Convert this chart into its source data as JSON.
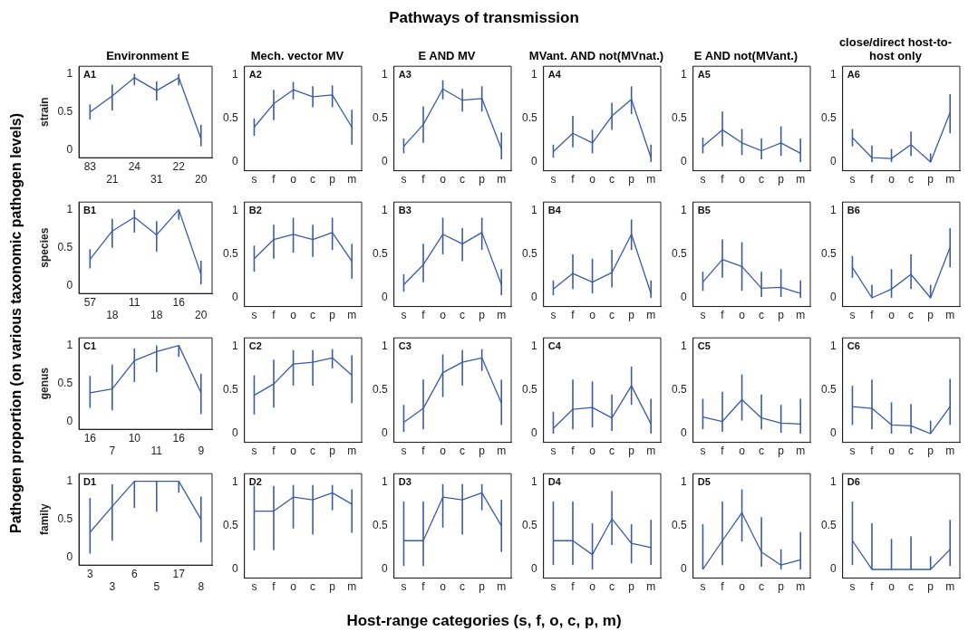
{
  "chart_data": [
    {
      "type": "other",
      "title": "Pathways of transmission",
      "xlabel": "Host-range categories (s, f, o, c, p, m)",
      "ylabel": "Pathogen proportion (on various taxonomic pathogen levels)"
    },
    {
      "type": "line",
      "title": "Environment E",
      "ylabel": "strain",
      "annotations": [
        "A1"
      ],
      "categories": [
        "83",
        "21",
        "24",
        "31",
        "22",
        "20"
      ],
      "values": [
        0.5,
        0.71,
        0.95,
        0.78,
        0.95,
        0.15
      ],
      "errors": [
        [
          0.4,
          0.6
        ],
        [
          0.52,
          0.86
        ],
        [
          0.85,
          1.0
        ],
        [
          0.65,
          0.9
        ],
        [
          0.85,
          1.0
        ],
        [
          0.05,
          0.33
        ]
      ],
      "color": "#3b5ba5",
      "ylim": [
        -0.1,
        1.1
      ],
      "yticks": [
        0,
        0.5,
        1
      ],
      "grid": false,
      "legend": false
    },
    {
      "type": "line",
      "title": "Mech. vector MV",
      "annotations": [
        "A2"
      ],
      "categories": [
        "s",
        "f",
        "o",
        "c",
        "p",
        "m"
      ],
      "values": [
        0.4,
        0.67,
        0.83,
        0.75,
        0.77,
        0.4
      ],
      "errors": [
        [
          0.3,
          0.5
        ],
        [
          0.48,
          0.83
        ],
        [
          0.72,
          0.92
        ],
        [
          0.63,
          0.87
        ],
        [
          0.63,
          0.88
        ],
        [
          0.2,
          0.6
        ]
      ],
      "color": "#3b5ba5",
      "ylim": [
        -0.1,
        1.1
      ],
      "yticks": [
        0,
        0.5,
        1
      ],
      "grid": false,
      "legend": false
    },
    {
      "type": "line",
      "title": "E AND MV",
      "annotations": [
        "A3"
      ],
      "categories": [
        "s",
        "f",
        "o",
        "c",
        "p",
        "m"
      ],
      "values": [
        0.18,
        0.43,
        0.84,
        0.71,
        0.73,
        0.15
      ],
      "errors": [
        [
          0.1,
          0.27
        ],
        [
          0.22,
          0.64
        ],
        [
          0.72,
          0.94
        ],
        [
          0.58,
          0.84
        ],
        [
          0.58,
          0.87
        ],
        [
          0.03,
          0.34
        ]
      ],
      "color": "#3b5ba5",
      "ylim": [
        -0.1,
        1.1
      ],
      "yticks": [
        0,
        0.5,
        1
      ],
      "grid": false,
      "legend": false
    },
    {
      "type": "line",
      "title": "MVant. AND not(MVnat.)",
      "annotations": [
        "A4"
      ],
      "categories": [
        "s",
        "f",
        "o",
        "c",
        "p",
        "m"
      ],
      "values": [
        0.12,
        0.33,
        0.22,
        0.53,
        0.72,
        0.05
      ],
      "errors": [
        [
          0.05,
          0.2
        ],
        [
          0.17,
          0.53
        ],
        [
          0.1,
          0.37
        ],
        [
          0.37,
          0.68
        ],
        [
          0.55,
          0.87
        ],
        [
          0,
          0.2
        ]
      ],
      "color": "#3b5ba5",
      "ylim": [
        -0.1,
        1.1
      ],
      "yticks": [
        0,
        0.5,
        1
      ],
      "grid": false,
      "legend": false
    },
    {
      "type": "line",
      "title": "E AND not(MVant.)",
      "annotations": [
        "A5"
      ],
      "categories": [
        "s",
        "f",
        "o",
        "c",
        "p",
        "m"
      ],
      "values": [
        0.18,
        0.37,
        0.22,
        0.13,
        0.22,
        0.1
      ],
      "errors": [
        [
          0.1,
          0.28
        ],
        [
          0.18,
          0.58
        ],
        [
          0.08,
          0.38
        ],
        [
          0.03,
          0.27
        ],
        [
          0.07,
          0.41
        ],
        [
          0,
          0.27
        ]
      ],
      "color": "#3b5ba5",
      "ylim": [
        -0.1,
        1.1
      ],
      "yticks": [
        0,
        0.5,
        1
      ],
      "grid": false,
      "legend": false
    },
    {
      "type": "line",
      "title": "close/direct host-to-host only",
      "annotations": [
        "A6"
      ],
      "categories": [
        "s",
        "f",
        "o",
        "c",
        "p",
        "m"
      ],
      "values": [
        0.28,
        0.05,
        0.04,
        0.2,
        0,
        0.57
      ],
      "errors": [
        [
          0.18,
          0.38
        ],
        [
          0,
          0.19
        ],
        [
          0,
          0.15
        ],
        [
          0.07,
          0.35
        ],
        [
          0,
          0.1
        ],
        [
          0.33,
          0.78
        ]
      ],
      "color": "#3b5ba5",
      "ylim": [
        -0.1,
        1.1
      ],
      "yticks": [
        0,
        0.5,
        1
      ],
      "grid": false,
      "legend": false
    },
    {
      "type": "line",
      "ylabel": "species",
      "annotations": [
        "B1"
      ],
      "categories": [
        "57",
        "18",
        "11",
        "18",
        "16",
        "20"
      ],
      "values": [
        0.35,
        0.72,
        0.9,
        0.67,
        1.0,
        0.15
      ],
      "errors": [
        [
          0.23,
          0.48
        ],
        [
          0.5,
          0.88
        ],
        [
          0.7,
          1.0
        ],
        [
          0.45,
          0.85
        ],
        [
          0.87,
          1.0
        ],
        [
          0.02,
          0.33
        ]
      ],
      "color": "#3b5ba5",
      "ylim": [
        -0.1,
        1.1
      ],
      "yticks": [
        0,
        0.5,
        1
      ],
      "grid": false,
      "legend": false
    },
    {
      "type": "line",
      "annotations": [
        "B2"
      ],
      "categories": [
        "s",
        "f",
        "o",
        "c",
        "p",
        "m"
      ],
      "values": [
        0.45,
        0.67,
        0.73,
        0.67,
        0.75,
        0.42
      ],
      "errors": [
        [
          0.3,
          0.6
        ],
        [
          0.45,
          0.84
        ],
        [
          0.52,
          0.92
        ],
        [
          0.47,
          0.84
        ],
        [
          0.55,
          0.92
        ],
        [
          0.22,
          0.62
        ]
      ],
      "color": "#3b5ba5",
      "ylim": [
        -0.1,
        1.1
      ],
      "yticks": [
        0,
        0.5,
        1
      ],
      "grid": false,
      "legend": false
    },
    {
      "type": "line",
      "annotations": [
        "B3"
      ],
      "categories": [
        "s",
        "f",
        "o",
        "c",
        "p",
        "m"
      ],
      "values": [
        0.15,
        0.38,
        0.73,
        0.62,
        0.75,
        0.15
      ],
      "errors": [
        [
          0.07,
          0.27
        ],
        [
          0.18,
          0.62
        ],
        [
          0.5,
          0.92
        ],
        [
          0.42,
          0.8
        ],
        [
          0.55,
          0.92
        ],
        [
          0.03,
          0.33
        ]
      ],
      "color": "#3b5ba5",
      "ylim": [
        -0.1,
        1.1
      ],
      "yticks": [
        0,
        0.5,
        1
      ],
      "grid": false,
      "legend": false
    },
    {
      "type": "line",
      "annotations": [
        "B4"
      ],
      "categories": [
        "s",
        "f",
        "o",
        "c",
        "p",
        "m"
      ],
      "values": [
        0.1,
        0.28,
        0.18,
        0.29,
        0.73,
        0.05
      ],
      "errors": [
        [
          0.03,
          0.2
        ],
        [
          0.1,
          0.5
        ],
        [
          0.05,
          0.45
        ],
        [
          0.12,
          0.55
        ],
        [
          0.55,
          0.9
        ],
        [
          0,
          0.2
        ]
      ],
      "color": "#3b5ba5",
      "ylim": [
        -0.1,
        1.1
      ],
      "yticks": [
        0,
        0.5,
        1
      ],
      "grid": false,
      "legend": false
    },
    {
      "type": "line",
      "annotations": [
        "B5"
      ],
      "categories": [
        "s",
        "f",
        "o",
        "c",
        "p",
        "m"
      ],
      "values": [
        0.18,
        0.44,
        0.36,
        0.11,
        0.12,
        0.05
      ],
      "errors": [
        [
          0.08,
          0.3
        ],
        [
          0.23,
          0.67
        ],
        [
          0.08,
          0.64
        ],
        [
          0.01,
          0.3
        ],
        [
          0.01,
          0.33
        ],
        [
          0,
          0.2
        ]
      ],
      "color": "#3b5ba5",
      "ylim": [
        -0.1,
        1.1
      ],
      "yticks": [
        0,
        0.5,
        1
      ],
      "grid": false,
      "legend": false
    },
    {
      "type": "line",
      "annotations": [
        "B6"
      ],
      "categories": [
        "s",
        "f",
        "o",
        "c",
        "p",
        "m"
      ],
      "values": [
        0.35,
        0,
        0.1,
        0.27,
        0,
        0.58
      ],
      "errors": [
        [
          0.23,
          0.48
        ],
        [
          0,
          0.15
        ],
        [
          0,
          0.33
        ],
        [
          0.1,
          0.5
        ],
        [
          0,
          0.15
        ],
        [
          0.35,
          0.8
        ]
      ],
      "color": "#3b5ba5",
      "ylim": [
        -0.1,
        1.1
      ],
      "yticks": [
        0,
        0.5,
        1
      ],
      "grid": false,
      "legend": false
    },
    {
      "type": "line",
      "ylabel": "genus",
      "annotations": [
        "C1"
      ],
      "categories": [
        "16",
        "7",
        "10",
        "11",
        "16",
        "9"
      ],
      "values": [
        0.38,
        0.43,
        0.8,
        0.92,
        1.0,
        0.38
      ],
      "errors": [
        [
          0.18,
          0.6
        ],
        [
          0.15,
          0.75
        ],
        [
          0.52,
          0.96
        ],
        [
          0.65,
          1.0
        ],
        [
          0.85,
          1.0
        ],
        [
          0.1,
          0.63
        ]
      ],
      "color": "#3b5ba5",
      "ylim": [
        -0.1,
        1.1
      ],
      "yticks": [
        0,
        0.5,
        1
      ],
      "grid": false,
      "legend": false
    },
    {
      "type": "line",
      "annotations": [
        "C2"
      ],
      "categories": [
        "s",
        "f",
        "o",
        "c",
        "p",
        "m"
      ],
      "values": [
        0.44,
        0.57,
        0.8,
        0.82,
        0.87,
        0.67
      ],
      "errors": [
        [
          0.22,
          0.67
        ],
        [
          0.3,
          0.85
        ],
        [
          0.55,
          0.96
        ],
        [
          0.55,
          0.96
        ],
        [
          0.75,
          0.97
        ],
        [
          0.35,
          0.9
        ]
      ],
      "color": "#3b5ba5",
      "ylim": [
        -0.1,
        1.1
      ],
      "yticks": [
        0,
        0.5,
        1
      ],
      "grid": false,
      "legend": false
    },
    {
      "type": "line",
      "annotations": [
        "C3"
      ],
      "categories": [
        "s",
        "f",
        "o",
        "c",
        "p",
        "m"
      ],
      "values": [
        0.13,
        0.29,
        0.7,
        0.82,
        0.87,
        0.35
      ],
      "errors": [
        [
          0.02,
          0.33
        ],
        [
          0.05,
          0.62
        ],
        [
          0.42,
          0.91
        ],
        [
          0.55,
          0.96
        ],
        [
          0.72,
          0.97
        ],
        [
          0.1,
          0.62
        ]
      ],
      "color": "#3b5ba5",
      "ylim": [
        -0.1,
        1.1
      ],
      "yticks": [
        0,
        0.5,
        1
      ],
      "grid": false,
      "legend": false
    },
    {
      "type": "line",
      "annotations": [
        "C4"
      ],
      "categories": [
        "s",
        "f",
        "o",
        "c",
        "p",
        "m"
      ],
      "values": [
        0.06,
        0.28,
        0.3,
        0.18,
        0.55,
        0.11
      ],
      "errors": [
        [
          0,
          0.25
        ],
        [
          0.05,
          0.62
        ],
        [
          0.07,
          0.6
        ],
        [
          0.03,
          0.45
        ],
        [
          0.33,
          0.77
        ],
        [
          0,
          0.4
        ]
      ],
      "color": "#3b5ba5",
      "ylim": [
        -0.1,
        1.1
      ],
      "yticks": [
        0,
        0.5,
        1
      ],
      "grid": false,
      "legend": false
    },
    {
      "type": "line",
      "annotations": [
        "C5"
      ],
      "categories": [
        "s",
        "f",
        "o",
        "c",
        "p",
        "m"
      ],
      "values": [
        0.19,
        0.14,
        0.39,
        0.18,
        0.12,
        0.11
      ],
      "errors": [
        [
          0.05,
          0.4
        ],
        [
          0.02,
          0.48
        ],
        [
          0.15,
          0.68
        ],
        [
          0.05,
          0.45
        ],
        [
          0.01,
          0.33
        ],
        [
          0,
          0.4
        ]
      ],
      "color": "#3b5ba5",
      "ylim": [
        -0.1,
        1.1
      ],
      "yticks": [
        0,
        0.5,
        1
      ],
      "grid": false,
      "legend": false
    },
    {
      "type": "line",
      "annotations": [
        "C6"
      ],
      "categories": [
        "s",
        "f",
        "o",
        "c",
        "p",
        "m"
      ],
      "values": [
        0.31,
        0.29,
        0.1,
        0.09,
        0,
        0.31
      ],
      "errors": [
        [
          0.1,
          0.55
        ],
        [
          0.05,
          0.62
        ],
        [
          0,
          0.36
        ],
        [
          0,
          0.34
        ],
        [
          0,
          0.15
        ],
        [
          0.1,
          0.63
        ]
      ],
      "color": "#3b5ba5",
      "ylim": [
        -0.1,
        1.1
      ],
      "yticks": [
        0,
        0.5,
        1
      ],
      "grid": false,
      "legend": false
    },
    {
      "type": "line",
      "ylabel": "family",
      "annotations": [
        "D1"
      ],
      "categories": [
        "3",
        "3",
        "6",
        "5",
        "17",
        "8"
      ],
      "values": [
        0.33,
        0.67,
        1.0,
        1.0,
        1.0,
        0.5
      ],
      "errors": [
        [
          0.05,
          0.78
        ],
        [
          0.22,
          0.96
        ],
        [
          0.65,
          1.0
        ],
        [
          0.6,
          1.0
        ],
        [
          0.85,
          1.0
        ],
        [
          0.2,
          0.8
        ]
      ],
      "color": "#3b5ba5",
      "ylim": [
        -0.1,
        1.1
      ],
      "yticks": [
        0,
        0.5,
        1
      ],
      "grid": false,
      "legend": false
    },
    {
      "type": "line",
      "annotations": [
        "D2"
      ],
      "categories": [
        "s",
        "f",
        "o",
        "c",
        "p",
        "m"
      ],
      "values": [
        0.67,
        0.67,
        0.83,
        0.8,
        0.88,
        0.75
      ],
      "errors": [
        [
          0.22,
          0.96
        ],
        [
          0.22,
          0.96
        ],
        [
          0.47,
          0.97
        ],
        [
          0.4,
          0.97
        ],
        [
          0.68,
          0.97
        ],
        [
          0.42,
          0.92
        ]
      ],
      "color": "#3b5ba5",
      "ylim": [
        -0.1,
        1.1
      ],
      "yticks": [
        0,
        0.5,
        1
      ],
      "grid": false,
      "legend": false
    },
    {
      "type": "line",
      "annotations": [
        "D3"
      ],
      "categories": [
        "s",
        "f",
        "o",
        "c",
        "p",
        "m"
      ],
      "values": [
        0.33,
        0.33,
        0.83,
        0.8,
        0.88,
        0.5
      ],
      "errors": [
        [
          0.04,
          0.78
        ],
        [
          0.04,
          0.78
        ],
        [
          0.48,
          0.98
        ],
        [
          0.4,
          0.98
        ],
        [
          0.68,
          0.98
        ],
        [
          0.2,
          0.8
        ]
      ],
      "color": "#3b5ba5",
      "ylim": [
        -0.1,
        1.1
      ],
      "yticks": [
        0,
        0.5,
        1
      ],
      "grid": false,
      "legend": false
    },
    {
      "type": "line",
      "annotations": [
        "D4"
      ],
      "categories": [
        "s",
        "f",
        "o",
        "c",
        "p",
        "m"
      ],
      "values": [
        0.33,
        0.33,
        0.17,
        0.58,
        0.3,
        0.25
      ],
      "errors": [
        [
          0.05,
          0.78
        ],
        [
          0.05,
          0.78
        ],
        [
          0,
          0.53
        ],
        [
          0.28,
          0.9
        ],
        [
          0.07,
          0.52
        ],
        [
          0.05,
          0.57
        ]
      ],
      "color": "#3b5ba5",
      "ylim": [
        -0.1,
        1.1
      ],
      "yticks": [
        0,
        0.5,
        1
      ],
      "grid": false,
      "legend": false
    },
    {
      "type": "line",
      "annotations": [
        "D5"
      ],
      "categories": [
        "s",
        "f",
        "o",
        "c",
        "p",
        "m"
      ],
      "values": [
        0,
        0.33,
        0.65,
        0.2,
        0.05,
        0.11
      ],
      "errors": [
        [
          0,
          0.52
        ],
        [
          0.05,
          0.78
        ],
        [
          0.32,
          0.92
        ],
        [
          0.03,
          0.6
        ],
        [
          0,
          0.23
        ],
        [
          0,
          0.43
        ]
      ],
      "color": "#3b5ba5",
      "ylim": [
        -0.1,
        1.1
      ],
      "yticks": [
        0,
        0.5,
        1
      ],
      "grid": false,
      "legend": false
    },
    {
      "type": "line",
      "annotations": [
        "D6"
      ],
      "categories": [
        "s",
        "f",
        "o",
        "c",
        "p",
        "m"
      ],
      "values": [
        0.33,
        0,
        0,
        0,
        0,
        0.23
      ],
      "errors": [
        [
          0.05,
          0.78
        ],
        [
          0,
          0.53
        ],
        [
          0,
          0.35
        ],
        [
          0,
          0.38
        ],
        [
          0,
          0.15
        ],
        [
          0.04,
          0.57
        ]
      ],
      "color": "#3b5ba5",
      "ylim": [
        -0.1,
        1.1
      ],
      "yticks": [
        0,
        0.5,
        1
      ],
      "grid": false,
      "legend": false
    }
  ]
}
